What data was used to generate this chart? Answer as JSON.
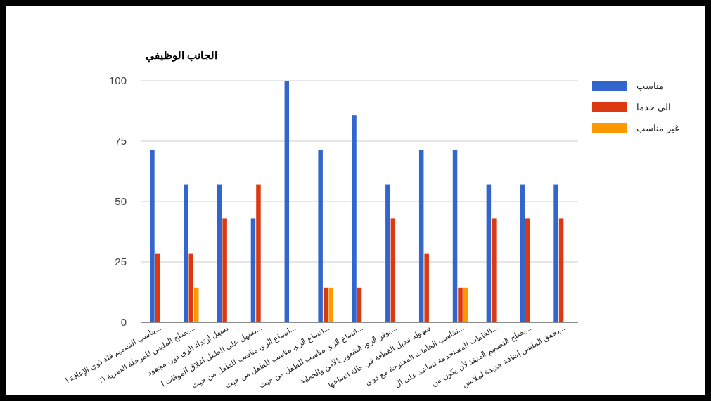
{
  "chart_data": {
    "type": "bar",
    "title": "الجانب الوظيفي",
    "categories": [
      "يناسب التصميم فئة ذوي الإعاقة ا...",
      "يصلح الملبس للمرحلة العمرية (7...",
      "يسهل ارتداء الزي دون مجهود",
      "يسهل على الطفل اغلاق الموقات ا...",
      "اتساع الزي مناسب للطفل من حيث...",
      "اتساع الزي مناسب للطفل من حيث...",
      "اتساع الزي مناسب للطفل من حيث...",
      "يوفر الزي الشعور بالأمن والحماية...",
      "سهولة تبديل القطعة في حالة اتساخها",
      "تتناسب الخامات المقترحة مع ذوي...",
      "الخامات المستخدمة تساعد على ال...",
      "يصلح التصميم المنفذ لأن يكون من...",
      "يحقق الملبس إضافة جديدة لملابس..."
    ],
    "series": [
      {
        "name": "مناسب",
        "color": "#3366cc",
        "values": [
          71.4,
          57.1,
          57.1,
          42.9,
          100,
          71.4,
          85.7,
          57.1,
          71.4,
          71.4,
          57.1,
          57.1,
          57.1
        ]
      },
      {
        "name": "الى حدما",
        "color": "#dc3912",
        "values": [
          28.6,
          28.6,
          42.9,
          57.1,
          0,
          14.3,
          14.3,
          42.9,
          28.6,
          14.3,
          42.9,
          42.9,
          42.9
        ]
      },
      {
        "name": "غير مناسب",
        "color": "#ff9900",
        "values": [
          0,
          14.3,
          0,
          0,
          0,
          14.3,
          0,
          0,
          0,
          14.3,
          0,
          0,
          0
        ]
      }
    ],
    "ylim": [
      0,
      100
    ],
    "yticks": [
      0,
      25,
      50,
      75,
      100
    ],
    "grid": "y",
    "legend": "right"
  }
}
